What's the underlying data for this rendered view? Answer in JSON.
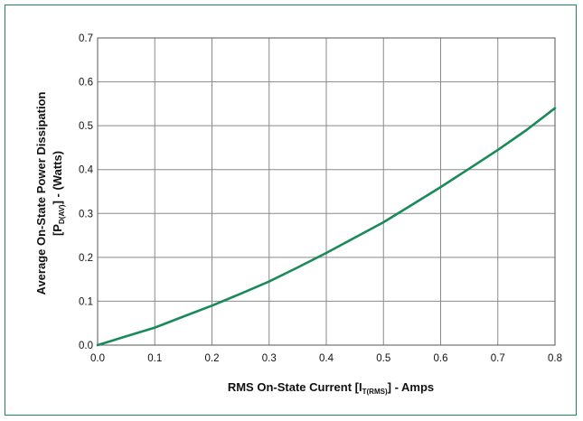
{
  "chart_data": {
    "type": "line",
    "title": "",
    "xlabel": {
      "main": "RMS On-State Current [I",
      "sub": "T(RMS)",
      "tail": "] - Amps"
    },
    "ylabel": {
      "line1": "Average On-State Power Dissipation",
      "line2_main": "[P",
      "line2_sub": "D(AV)",
      "line2_tail": "] - (Watts)"
    },
    "xlim": [
      0,
      0.8
    ],
    "ylim": [
      0,
      0.7
    ],
    "xticks": [
      0.0,
      0.1,
      0.2,
      0.3,
      0.4,
      0.5,
      0.6,
      0.7,
      0.8
    ],
    "xtick_labels": [
      "0.0",
      "0.1",
      "0.2",
      "0.3",
      "0.4",
      "0.5",
      "0.6",
      "0.7",
      "0.8"
    ],
    "yticks": [
      0.0,
      0.1,
      0.2,
      0.3,
      0.4,
      0.5,
      0.6,
      0.7
    ],
    "ytick_labels": [
      "0.0",
      "0.1",
      "0.2",
      "0.3",
      "0.4",
      "0.5",
      "0.6",
      "0.7"
    ],
    "grid": true,
    "line_color": "#1a8a5a",
    "frame_color": "#1a8a5a",
    "series": [
      {
        "x": [
          0.0,
          0.05,
          0.1,
          0.15,
          0.2,
          0.25,
          0.3,
          0.35,
          0.4,
          0.45,
          0.5,
          0.55,
          0.6,
          0.65,
          0.7,
          0.75,
          0.8
        ],
        "values": [
          0.0,
          0.02,
          0.04,
          0.065,
          0.09,
          0.117,
          0.145,
          0.177,
          0.21,
          0.245,
          0.28,
          0.32,
          0.36,
          0.402,
          0.445,
          0.49,
          0.54
        ]
      }
    ]
  }
}
